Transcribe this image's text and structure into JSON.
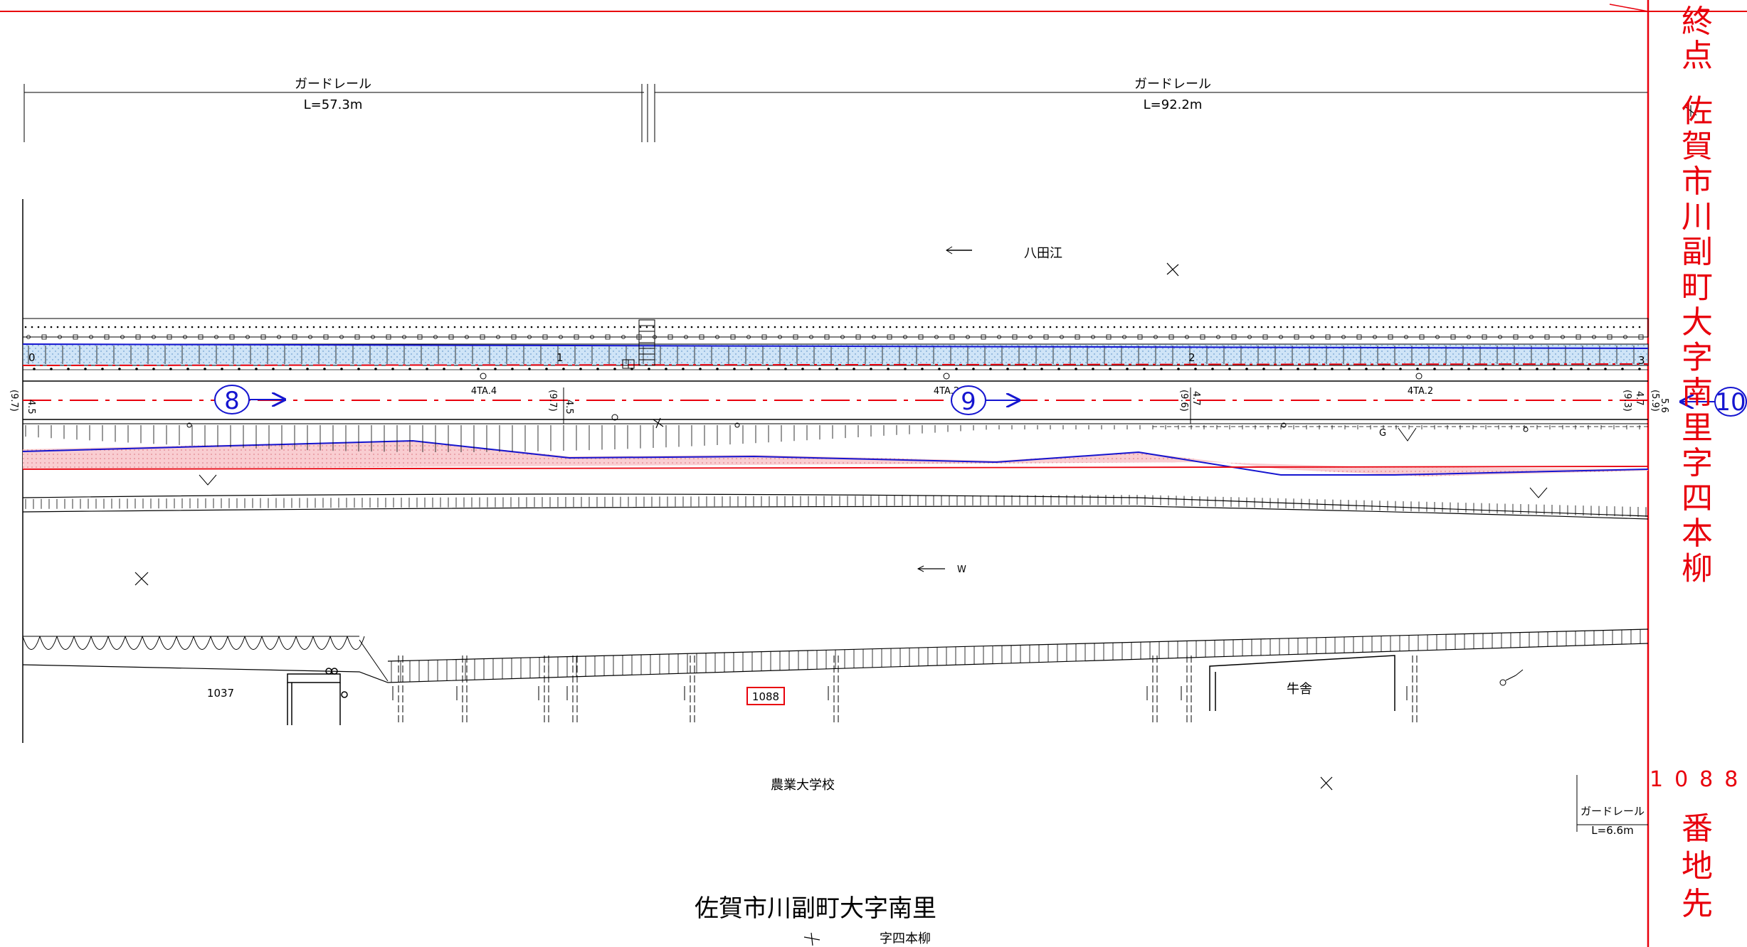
{
  "drawing": {
    "guardrails": [
      {
        "label": "ガードレール",
        "length": "L=57.3m"
      },
      {
        "label": "ガードレール",
        "length": "L=92.2m"
      },
      {
        "label": "ガードレール",
        "length": "L=6.6m"
      }
    ],
    "river_name": "八田江",
    "stations": [
      {
        "number": "8"
      },
      {
        "number": "9"
      },
      {
        "number": "10"
      }
    ],
    "sta_small": [
      "0",
      "1",
      "2",
      "3"
    ],
    "sections": [
      "4TA.4",
      "4TA.2",
      "4TA.2"
    ],
    "widths": {
      "a": "4.5",
      "a2": "(9.7)",
      "b": "4.5",
      "b2": "(9.7)",
      "c": "4.7",
      "c2": "(9.6)",
      "d": "4.7",
      "d2": "(9.3)",
      "e": "5.6",
      "e2": "(5.9)"
    },
    "lot_numbers": {
      "left": "1037",
      "boxed": "1088"
    },
    "building": "牛舎",
    "school": "農業大学校",
    "direction_mark": "W",
    "g_mark": "G",
    "address_main": "佐賀市川副町大字南里",
    "address_sub": "字四本柳",
    "endpoint": {
      "label": [
        "終",
        "点"
      ],
      "address": [
        "佐",
        "賀",
        "市",
        "川",
        "副",
        "町",
        "大",
        "字",
        "南",
        "里",
        "字",
        "四",
        "本",
        "柳"
      ],
      "lot": "1088",
      "suffix": [
        "番",
        "地",
        "先"
      ]
    },
    "colors": {
      "red": "#e8000c",
      "blue": "#1515d0",
      "water": "#cfe4f7",
      "pink": "#f7c4c8"
    }
  }
}
